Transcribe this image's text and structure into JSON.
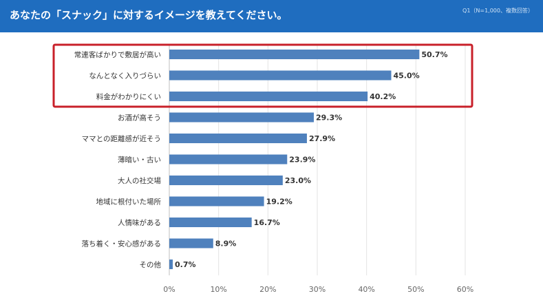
{
  "header": {
    "title": "あなたの「スナック」に対するイメージを教えてください。",
    "note": "Q1（N=1,000、複数回答）"
  },
  "colors": {
    "header_bg": "#1f6dbf",
    "bar": "#4f81bd",
    "highlight_box": "#c8202a",
    "grid": "#e3e3e3"
  },
  "chart_data": {
    "type": "bar",
    "orientation": "horizontal",
    "categories": [
      "常連客ばかりで敷居が高い",
      "なんとなく入りづらい",
      "料金がわかりにくい",
      "お酒が高そう",
      "ママとの距離感が近そう",
      "薄暗い・古い",
      "大人の社交場",
      "地域に根付いた場所",
      "人情味がある",
      "落ち着く・安心感がある",
      "その他"
    ],
    "values": [
      50.7,
      45.0,
      40.2,
      29.3,
      27.9,
      23.9,
      23.0,
      19.2,
      16.7,
      8.9,
      0.7
    ],
    "value_labels": [
      "50.7%",
      "45.0%",
      "40.2%",
      "29.3%",
      "27.9%",
      "23.9%",
      "23.0%",
      "19.2%",
      "16.7%",
      "8.9%",
      "0.7%"
    ],
    "xlim": [
      0,
      60
    ],
    "ticks": [
      "0%",
      "10%",
      "20%",
      "30%",
      "40%",
      "50%",
      "60%"
    ],
    "grid": true,
    "highlighted_categories": [
      0,
      1,
      2
    ]
  }
}
